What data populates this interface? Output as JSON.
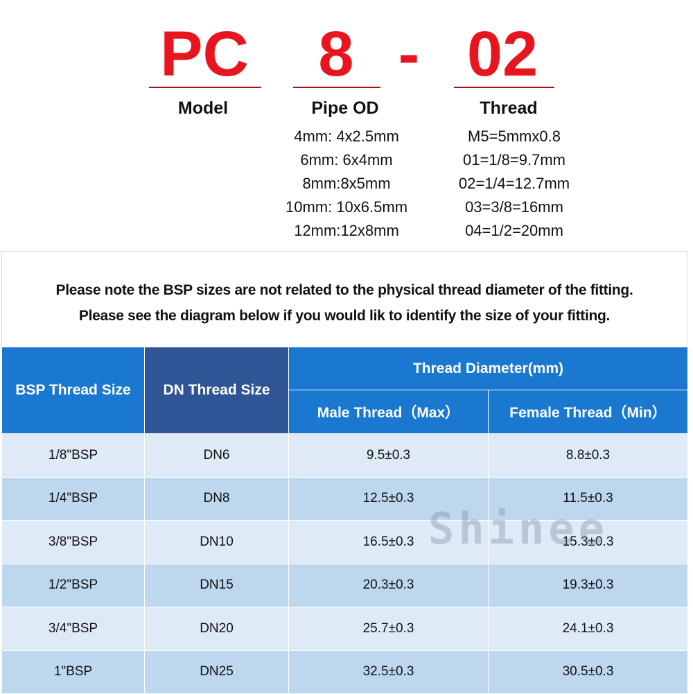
{
  "code": {
    "model": "PC",
    "pipe": "8",
    "dash": "-",
    "thread": "02"
  },
  "labels": {
    "model": "Model",
    "pipe": "Pipe OD",
    "thread": "Thread"
  },
  "pipe_od": [
    "4mm: 4x2.5mm",
    "6mm: 6x4mm",
    "8mm:8x5mm",
    "10mm: 10x6.5mm",
    "12mm:12x8mm"
  ],
  "threads": [
    "M5=5mmx0.8",
    "01=1/8=9.7mm",
    "02=1/4=12.7mm",
    "03=3/8=16mm",
    "04=1/2=20mm"
  ],
  "notice": [
    "Please note the BSP sizes are not related to the physical thread diameter of the fitting.",
    "Please see the diagram below if you would lik to identify the size of your fitting."
  ],
  "table": {
    "headers": {
      "bsp": "BSP Thread Size",
      "dn": "DN Thread Size",
      "diameter": "Thread Diameter(mm)",
      "male": "Male Thread（Max）",
      "female": "Female Thread（Min）"
    },
    "rows": [
      [
        "1/8\"BSP",
        "DN6",
        "9.5±0.3",
        "8.8±0.3"
      ],
      [
        "1/4\"BSP",
        "DN8",
        "12.5±0.3",
        "11.5±0.3"
      ],
      [
        "3/8\"BSP",
        "DN10",
        "16.5±0.3",
        "15.3±0.3"
      ],
      [
        "1/2\"BSP",
        "DN15",
        "20.3±0.3",
        "19.3±0.3"
      ],
      [
        "3/4\"BSP",
        "DN20",
        "25.7±0.3",
        "24.1±0.3"
      ],
      [
        "1\"BSP",
        "DN25",
        "32.5±0.3",
        "30.5±0.3"
      ]
    ]
  },
  "watermark": "Shinee",
  "colors": {
    "code": "#e8141e",
    "header": "#1a78d0",
    "dn_header": "#2f5597",
    "row_light": "#deebf7",
    "row_dark": "#bdd7ee"
  }
}
